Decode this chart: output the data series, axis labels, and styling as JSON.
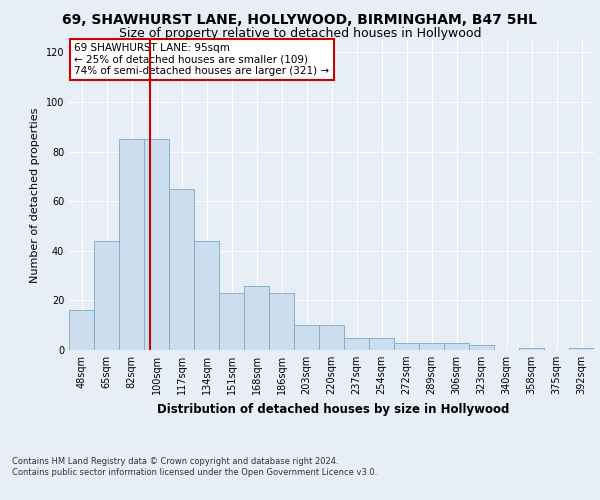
{
  "title1": "69, SHAWHURST LANE, HOLLYWOOD, BIRMINGHAM, B47 5HL",
  "title2": "Size of property relative to detached houses in Hollywood",
  "xlabel": "Distribution of detached houses by size in Hollywood",
  "ylabel": "Number of detached properties",
  "footnote": "Contains HM Land Registry data © Crown copyright and database right 2024.\nContains public sector information licensed under the Open Government Licence v3.0.",
  "bar_labels": [
    "48sqm",
    "65sqm",
    "82sqm",
    "100sqm",
    "117sqm",
    "134sqm",
    "151sqm",
    "168sqm",
    "186sqm",
    "203sqm",
    "220sqm",
    "237sqm",
    "254sqm",
    "272sqm",
    "289sqm",
    "306sqm",
    "323sqm",
    "340sqm",
    "358sqm",
    "375sqm",
    "392sqm"
  ],
  "bar_values": [
    16,
    44,
    85,
    85,
    65,
    44,
    23,
    26,
    23,
    10,
    10,
    5,
    5,
    3,
    3,
    3,
    2,
    0,
    1,
    0,
    1
  ],
  "bar_color": "#ccdded",
  "bar_edge_color": "#7aaac8",
  "subject_line_color": "#cc0000",
  "annotation_text": "69 SHAWHURST LANE: 95sqm\n← 25% of detached houses are smaller (109)\n74% of semi-detached houses are larger (321) →",
  "annotation_box_color": "#ffffff",
  "annotation_box_edge_color": "#cc0000",
  "ylim": [
    0,
    125
  ],
  "yticks": [
    0,
    20,
    40,
    60,
    80,
    100,
    120
  ],
  "background_color": "#e8eef5",
  "grid_color": "#ffffff",
  "title1_fontsize": 10,
  "title2_fontsize": 9,
  "xlabel_fontsize": 8.5,
  "ylabel_fontsize": 8,
  "tick_fontsize": 7,
  "annotation_fontsize": 7.5,
  "footnote_fontsize": 6
}
